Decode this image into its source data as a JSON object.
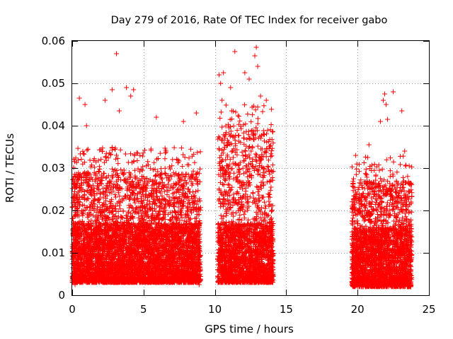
{
  "chart_data": {
    "type": "scatter",
    "title": "Day 279 of 2016, Rate Of TEC Index for receiver gabo",
    "xlabel": "GPS time / hours",
    "ylabel": "ROTI / TECUs",
    "xlim": [
      0,
      25
    ],
    "ylim": [
      0,
      0.06
    ],
    "xticks": [
      0,
      5,
      10,
      15,
      20,
      25
    ],
    "xtick_labels": [
      "0",
      "5",
      "10",
      "15",
      "20",
      "25"
    ],
    "yticks": [
      0,
      0.01,
      0.02,
      0.03,
      0.04,
      0.05,
      0.06
    ],
    "ytick_labels": [
      "0",
      "0.01",
      "0.02",
      "0.03",
      "0.04",
      "0.05",
      "0.06"
    ],
    "grid": true,
    "marker": "+",
    "colors": {
      "points": "#ff0000",
      "frame": "#000000",
      "grid": "#a0a0a0"
    },
    "series": [
      {
        "name": "ROTI",
        "coverage_segments": [
          {
            "x_start": 0.0,
            "x_end": 9.0,
            "typical_min": 0.003,
            "typical_max": 0.035
          },
          {
            "x_start": 10.2,
            "x_end": 14.1,
            "typical_min": 0.003,
            "typical_max": 0.045
          },
          {
            "x_start": 19.6,
            "x_end": 23.8,
            "typical_min": 0.002,
            "typical_max": 0.033
          }
        ],
        "notable_points": [
          {
            "x": 3.1,
            "y": 0.057
          },
          {
            "x": 11.4,
            "y": 0.0575
          },
          {
            "x": 12.9,
            "y": 0.0585
          },
          {
            "x": 12.8,
            "y": 0.0565
          },
          {
            "x": 10.3,
            "y": 0.052
          },
          {
            "x": 10.6,
            "y": 0.0525
          },
          {
            "x": 12.1,
            "y": 0.0525
          },
          {
            "x": 12.4,
            "y": 0.051
          },
          {
            "x": 13.0,
            "y": 0.054
          },
          {
            "x": 10.4,
            "y": 0.05
          },
          {
            "x": 11.1,
            "y": 0.049
          },
          {
            "x": 10.5,
            "y": 0.046
          },
          {
            "x": 13.2,
            "y": 0.047
          },
          {
            "x": 13.6,
            "y": 0.046
          },
          {
            "x": 2.8,
            "y": 0.0485
          },
          {
            "x": 3.8,
            "y": 0.049
          },
          {
            "x": 4.3,
            "y": 0.0485
          },
          {
            "x": 4.1,
            "y": 0.047
          },
          {
            "x": 0.5,
            "y": 0.0465
          },
          {
            "x": 2.3,
            "y": 0.046
          },
          {
            "x": 0.9,
            "y": 0.045
          },
          {
            "x": 3.3,
            "y": 0.0435
          },
          {
            "x": 5.9,
            "y": 0.042
          },
          {
            "x": 8.7,
            "y": 0.043
          },
          {
            "x": 7.8,
            "y": 0.041
          },
          {
            "x": 1.0,
            "y": 0.04
          },
          {
            "x": 22.5,
            "y": 0.048
          },
          {
            "x": 21.9,
            "y": 0.0475
          },
          {
            "x": 21.8,
            "y": 0.046
          },
          {
            "x": 22.0,
            "y": 0.045
          },
          {
            "x": 23.1,
            "y": 0.0435
          },
          {
            "x": 21.6,
            "y": 0.041
          },
          {
            "x": 22.1,
            "y": 0.0415
          },
          {
            "x": 20.8,
            "y": 0.0355
          },
          {
            "x": 23.3,
            "y": 0.034
          },
          {
            "x": 0.2,
            "y": 0.0025
          },
          {
            "x": 8.9,
            "y": 0.0025
          },
          {
            "x": 20.3,
            "y": 0.002
          },
          {
            "x": 23.0,
            "y": 0.002
          }
        ]
      }
    ]
  }
}
